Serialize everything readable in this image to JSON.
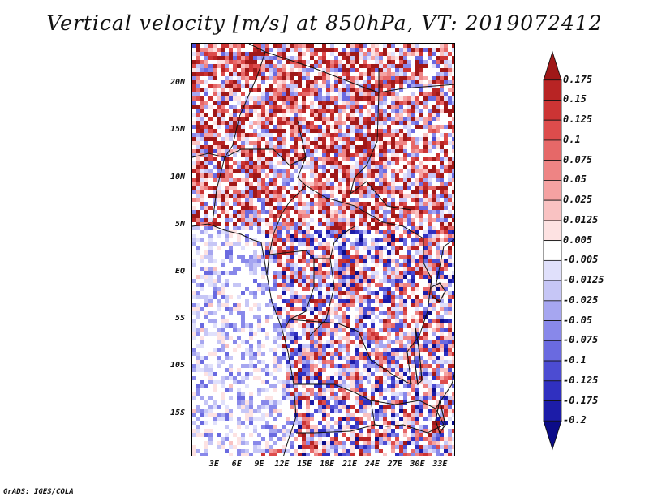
{
  "title": "Vertical velocity [m/s] at 850hPa, VT: 2019072412",
  "footer": "GrADS: IGES/COLA",
  "map": {
    "lon_range": [
      0,
      35
    ],
    "lat_range": [
      -19.5,
      24.3
    ],
    "lat_ticks": [
      "20N",
      "15N",
      "10N",
      "5N",
      "EQ",
      "5S",
      "10S",
      "15S"
    ],
    "lat_values": [
      20,
      15,
      10,
      5,
      0,
      -5,
      -10,
      -15
    ],
    "lon_ticks": [
      "3E",
      "6E",
      "9E",
      "12E",
      "15E",
      "18E",
      "21E",
      "24E",
      "27E",
      "30E",
      "33E"
    ],
    "lon_values": [
      3,
      6,
      9,
      12,
      15,
      18,
      21,
      24,
      27,
      30,
      33
    ]
  },
  "colorbar": {
    "labels": [
      "0.175",
      "0.15",
      "0.125",
      "0.1",
      "0.075",
      "0.05",
      "0.025",
      "0.0125",
      "0.005",
      "-0.005",
      "-0.0125",
      "-0.025",
      "-0.05",
      "-0.075",
      "-0.1",
      "-0.125",
      "-0.175",
      "-0.2"
    ],
    "colors": [
      "#a01818",
      "#b82424",
      "#cc3434",
      "#dd4c4c",
      "#e66868",
      "#ee8484",
      "#f5a2a2",
      "#f9c2c2",
      "#fde2e2",
      "#ffffff",
      "#e0e0fb",
      "#c6c6f6",
      "#a6a6f0",
      "#8888ea",
      "#6a6ae0",
      "#4c4cd2",
      "#3030c0",
      "#1c1ca8",
      "#0c0c88"
    ]
  }
}
